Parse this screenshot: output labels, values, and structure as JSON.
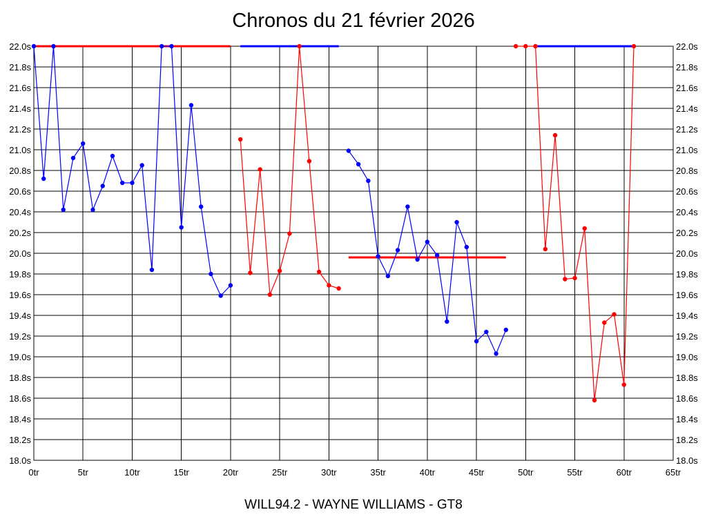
{
  "title": "Chronos du 21 février 2026",
  "footer": "WILL94.2 - WAYNE WILLIAMS - GT8",
  "colors": {
    "blue": "#0000ff",
    "red": "#ff0000",
    "grid": "#000000"
  },
  "chart_data": {
    "type": "line",
    "title": "Chronos du 21 février 2026",
    "xlabel": "",
    "ylabel": "",
    "xlim": [
      0,
      65
    ],
    "ylim": [
      18.0,
      22.0
    ],
    "grid": true,
    "x_ticks": [
      0,
      5,
      10,
      15,
      20,
      25,
      30,
      35,
      40,
      45,
      50,
      55,
      60,
      65
    ],
    "x_tick_labels": [
      "0tr",
      "5tr",
      "10tr",
      "15tr",
      "20tr",
      "25tr",
      "30tr",
      "35tr",
      "40tr",
      "45tr",
      "50tr",
      "55tr",
      "60tr",
      "65tr"
    ],
    "y_ticks": [
      18.0,
      18.2,
      18.4,
      18.6,
      18.8,
      19.0,
      19.2,
      19.4,
      19.6,
      19.8,
      20.0,
      20.2,
      20.4,
      20.6,
      20.8,
      21.0,
      21.2,
      21.4,
      21.6,
      21.8,
      22.0
    ],
    "y_tick_labels": [
      "18.0s",
      "18.2s",
      "18.4s",
      "18.6s",
      "18.8s",
      "19.0s",
      "19.2s",
      "19.4s",
      "19.6s",
      "19.8s",
      "20.0s",
      "20.2s",
      "20.4s",
      "20.6s",
      "20.8s",
      "21.0s",
      "21.2s",
      "21.4s",
      "21.6s",
      "21.8s",
      "22.0s"
    ],
    "series": [
      {
        "color": "blue",
        "x": [
          0,
          1,
          2,
          3,
          4,
          5,
          6,
          7,
          8,
          9,
          10,
          11,
          12,
          13,
          14,
          15,
          16,
          17,
          18,
          19,
          20
        ],
        "y": [
          22.0,
          20.72,
          22.0,
          20.42,
          20.92,
          21.06,
          20.42,
          20.65,
          20.94,
          20.68,
          20.68,
          20.85,
          19.84,
          22.0,
          22.0,
          20.25,
          21.43,
          20.45,
          19.8,
          19.59,
          19.69
        ]
      },
      {
        "color": "red",
        "x": [
          21,
          22,
          23,
          24,
          25,
          26,
          27,
          28,
          29,
          30,
          31
        ],
        "y": [
          21.1,
          19.81,
          20.81,
          19.6,
          19.83,
          20.19,
          22.0,
          20.89,
          19.82,
          19.69,
          19.66
        ]
      },
      {
        "color": "blue",
        "x": [
          32,
          33,
          34,
          35,
          36,
          37,
          38,
          39,
          40,
          41,
          42,
          43,
          44,
          45,
          46,
          47,
          48
        ],
        "y": [
          20.99,
          20.86,
          20.7,
          19.97,
          19.78,
          20.03,
          20.45,
          19.94,
          20.11,
          19.98,
          19.34,
          20.3,
          20.06,
          19.15,
          19.24,
          19.03,
          19.26
        ]
      },
      {
        "color": "red",
        "x": [
          49,
          50,
          51,
          52,
          53,
          54,
          55,
          56,
          57,
          58,
          59,
          60,
          61
        ],
        "y": [
          22.0,
          22.0,
          22.0,
          20.04,
          21.14,
          19.75,
          19.76,
          20.24,
          18.58,
          19.33,
          19.41,
          18.73,
          22.0
        ]
      }
    ],
    "reference_lines": [
      {
        "color": "red",
        "x": [
          0,
          20
        ],
        "y": 22.0
      },
      {
        "color": "blue",
        "x": [
          21,
          31
        ],
        "y": 22.0
      },
      {
        "color": "red",
        "x": [
          32,
          48
        ],
        "y": 19.96
      },
      {
        "color": "blue",
        "x": [
          51,
          61
        ],
        "y": 22.0
      }
    ]
  }
}
